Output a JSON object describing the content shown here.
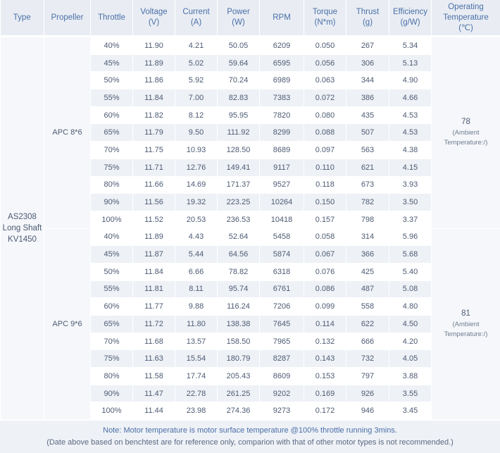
{
  "headers": {
    "type": "Type",
    "propeller": "Propeller",
    "throttle": "Throttle",
    "voltage": [
      "Voltage",
      "(V)"
    ],
    "current": [
      "Current",
      "(A)"
    ],
    "power": [
      "Power",
      "(W)"
    ],
    "rpm": "RPM",
    "torque": [
      "Torque",
      "(N*m)"
    ],
    "thrust": [
      "Thrust",
      "(g)"
    ],
    "efficiency": [
      "Efficiency",
      "(g/W)"
    ],
    "temperature": [
      "Operating",
      "Temperature",
      "(℃)"
    ]
  },
  "motor_type": [
    "AS2308",
    "Long Shaft",
    "KV1450"
  ],
  "groups": [
    {
      "propeller": "APC 8*6",
      "temperature": "78",
      "temperature_note": [
        "(Ambient",
        "Temperature:/)"
      ],
      "rows": [
        [
          "40%",
          "11.90",
          "4.21",
          "50.05",
          "6209",
          "0.050",
          "267",
          "5.34"
        ],
        [
          "45%",
          "11.89",
          "5.02",
          "59.64",
          "6595",
          "0.056",
          "306",
          "5.13"
        ],
        [
          "50%",
          "11.86",
          "5.92",
          "70.24",
          "6989",
          "0.063",
          "344",
          "4.90"
        ],
        [
          "55%",
          "11.84",
          "7.00",
          "82.83",
          "7383",
          "0.072",
          "386",
          "4.66"
        ],
        [
          "60%",
          "11.82",
          "8.12",
          "95.95",
          "7820",
          "0.080",
          "435",
          "4.53"
        ],
        [
          "65%",
          "11.79",
          "9.50",
          "111.92",
          "8299",
          "0.088",
          "507",
          "4.53"
        ],
        [
          "70%",
          "11.75",
          "10.93",
          "128.50",
          "8689",
          "0.097",
          "563",
          "4.38"
        ],
        [
          "75%",
          "11.71",
          "12.76",
          "149.41",
          "9117",
          "0.110",
          "621",
          "4.15"
        ],
        [
          "80%",
          "11.66",
          "14.69",
          "171.37",
          "9527",
          "0.118",
          "673",
          "3.93"
        ],
        [
          "90%",
          "11.56",
          "19.32",
          "223.25",
          "10264",
          "0.150",
          "782",
          "3.50"
        ],
        [
          "100%",
          "11.52",
          "20.53",
          "236.53",
          "10418",
          "0.157",
          "798",
          "3.37"
        ]
      ]
    },
    {
      "propeller": "APC 9*6",
      "temperature": "81",
      "temperature_note": [
        "(Ambient",
        "Temperature:/)"
      ],
      "rows": [
        [
          "40%",
          "11.89",
          "4.43",
          "52.64",
          "5458",
          "0.058",
          "314",
          "5.96"
        ],
        [
          "45%",
          "11.87",
          "5.44",
          "64.56",
          "5874",
          "0.067",
          "366",
          "5.68"
        ],
        [
          "50%",
          "11.84",
          "6.66",
          "78.82",
          "6318",
          "0.076",
          "425",
          "5.40"
        ],
        [
          "55%",
          "11.81",
          "8.11",
          "95.74",
          "6761",
          "0.086",
          "487",
          "5.08"
        ],
        [
          "60%",
          "11.77",
          "9.88",
          "116.24",
          "7206",
          "0.099",
          "558",
          "4.80"
        ],
        [
          "65%",
          "11.72",
          "11.80",
          "138.38",
          "7645",
          "0.114",
          "622",
          "4.50"
        ],
        [
          "70%",
          "11.68",
          "13.57",
          "158.50",
          "7965",
          "0.132",
          "666",
          "4.20"
        ],
        [
          "75%",
          "11.63",
          "15.54",
          "180.79",
          "8287",
          "0.143",
          "732",
          "4.05"
        ],
        [
          "80%",
          "11.58",
          "17.74",
          "205.43",
          "8609",
          "0.153",
          "797",
          "3.88"
        ],
        [
          "90%",
          "11.47",
          "22.78",
          "261.25",
          "9202",
          "0.169",
          "926",
          "3.55"
        ],
        [
          "100%",
          "11.44",
          "23.98",
          "274.36",
          "9273",
          "0.172",
          "946",
          "3.45"
        ]
      ]
    }
  ],
  "footer": {
    "note": "Note: Motor temperature is motor surface temperature @100% throttle running 3mins.",
    "disclaimer": "(Date above based on benchtest are for reference only, comparion with that of other motor types is not recommended.)"
  },
  "colors": {
    "header_bg": "#e9edf3",
    "header_text": "#4a6fa8",
    "stripe": "#eef1f6"
  }
}
